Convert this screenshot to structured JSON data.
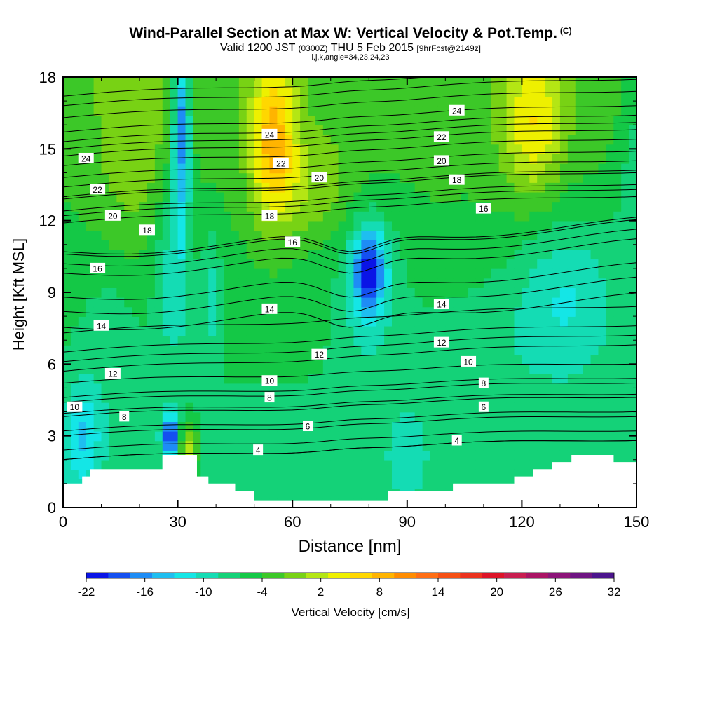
{
  "header": {
    "title": "Wind-Parallel Section at Max W: Vertical Velocity & Pot.Temp.",
    "title_sup": "(C)",
    "subtitle_a": "Valid 1200 JST ",
    "subtitle_b": "(0300Z)",
    "subtitle_c": " THU 5 Feb 2015 ",
    "subtitle_d": "[9hrFcst@2149z]",
    "subtitle2": "i,j,k,angle=34,23,24,23"
  },
  "chart_data": {
    "type": "heatmap",
    "title": "Wind-Parallel Section at Max W: Vertical Velocity & Pot.Temp.",
    "xlabel": "Distance [nm]",
    "ylabel": "Height [Kft MSL]",
    "xlim": [
      0,
      150
    ],
    "ylim": [
      0,
      18
    ],
    "x_ticks": [
      "0",
      "30",
      "60",
      "90",
      "120",
      "150"
    ],
    "x_tick_values": [
      0,
      30,
      60,
      90,
      120,
      150
    ],
    "y_ticks": [
      "0",
      "3",
      "6",
      "9",
      "12",
      "15",
      "18"
    ],
    "y_tick_values": [
      0,
      3,
      6,
      9,
      12,
      15,
      18
    ],
    "colorbar": {
      "label": "Vertical Velocity [cm/s]",
      "tick_labels": [
        "-22",
        "-16",
        "-10",
        "-4",
        "2",
        "8",
        "14",
        "20",
        "26",
        "32"
      ],
      "min": -22,
      "max": 32,
      "step": 3,
      "colors": [
        "#0a14e6",
        "#1450f0",
        "#1e8cf5",
        "#1ebef0",
        "#14e6e6",
        "#14dcb4",
        "#14d278",
        "#14c846",
        "#3cc828",
        "#78d214",
        "#b4e614",
        "#eef000",
        "#ffd700",
        "#ffb400",
        "#ff8c00",
        "#ff6e14",
        "#f55014",
        "#eb321e",
        "#dc1428",
        "#c81e50",
        "#aa1464",
        "#8c1478",
        "#6e1482",
        "#4b148c"
      ]
    },
    "terrain_top_kft": [
      [
        0,
        1.0
      ],
      [
        5,
        1.0
      ],
      [
        5,
        1.3
      ],
      [
        7,
        1.3
      ],
      [
        7,
        1.6
      ],
      [
        13,
        1.6
      ],
      [
        13,
        1.6
      ],
      [
        26,
        1.6
      ],
      [
        26,
        2.2
      ],
      [
        30,
        2.2
      ],
      [
        30,
        2.2
      ],
      [
        35,
        2.2
      ],
      [
        35,
        1.3
      ],
      [
        38,
        1.3
      ],
      [
        38,
        1.0
      ],
      [
        45,
        1.0
      ],
      [
        45,
        0.7
      ],
      [
        50,
        0.7
      ],
      [
        50,
        0.3
      ],
      [
        55,
        0.3
      ],
      [
        55,
        0.3
      ],
      [
        85,
        0.3
      ],
      [
        85,
        0.7
      ],
      [
        102,
        0.7
      ],
      [
        102,
        1.0
      ],
      [
        118,
        1.0
      ],
      [
        118,
        1.3
      ],
      [
        123,
        1.3
      ],
      [
        123,
        1.6
      ],
      [
        128,
        1.6
      ],
      [
        128,
        1.9
      ],
      [
        133,
        1.9
      ],
      [
        133,
        2.2
      ],
      [
        144,
        2.2
      ],
      [
        144,
        1.9
      ],
      [
        150,
        1.9
      ]
    ],
    "theta_isentropes": [
      {
        "value": 4,
        "label_at": [
          [
            51,
            2.4
          ],
          [
            103,
            2.8
          ]
        ]
      },
      {
        "value": 6,
        "label_at": [
          [
            64,
            3.4
          ],
          [
            110,
            4.2
          ]
        ]
      },
      {
        "value": 8,
        "label_at": [
          [
            16,
            3.8
          ],
          [
            54,
            4.6
          ],
          [
            110,
            5.2
          ]
        ]
      },
      {
        "value": 10,
        "label_at": [
          [
            3,
            4.2
          ],
          [
            54,
            5.3
          ],
          [
            106,
            6.1
          ]
        ]
      },
      {
        "value": 12,
        "label_at": [
          [
            13,
            5.6
          ],
          [
            67,
            6.4
          ],
          [
            99,
            6.9
          ]
        ]
      },
      {
        "value": 14,
        "label_at": [
          [
            10,
            7.6
          ],
          [
            54,
            8.3
          ],
          [
            99,
            8.5
          ]
        ]
      },
      {
        "value": 16,
        "label_at": [
          [
            9,
            10.0
          ],
          [
            60,
            11.1
          ],
          [
            110,
            12.5
          ]
        ]
      },
      {
        "value": 18,
        "label_at": [
          [
            22,
            11.6
          ],
          [
            54,
            12.2
          ],
          [
            103,
            13.7
          ]
        ]
      },
      {
        "value": 20,
        "label_at": [
          [
            13,
            12.2
          ],
          [
            67,
            13.8
          ],
          [
            99,
            14.5
          ]
        ]
      },
      {
        "value": 22,
        "label_at": [
          [
            9,
            13.3
          ],
          [
            57,
            14.4
          ],
          [
            99,
            15.5
          ]
        ]
      },
      {
        "value": 24,
        "label_at": [
          [
            6,
            14.6
          ],
          [
            54,
            15.6
          ],
          [
            103,
            16.6
          ]
        ]
      }
    ]
  }
}
